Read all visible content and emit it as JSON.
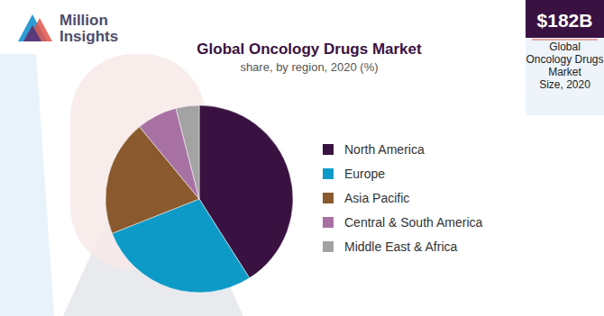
{
  "chart_data": {
    "type": "pie",
    "title": "Global Oncology Drugs Market",
    "subtitle": "share, by region, 2020 (%)",
    "categories": [
      "North America",
      "Europe",
      "Asia Pacific",
      "Central & South America",
      "Middle East & Africa"
    ],
    "values": [
      41,
      28,
      20,
      7,
      4
    ],
    "colors": [
      "#3a1241",
      "#0e9ac7",
      "#8a5a2e",
      "#a871a4",
      "#a3a3a3"
    ],
    "legend": "right",
    "annotations": [
      "$182B",
      "Global",
      "Oncology Drugs",
      "Market",
      "Size, 2020"
    ]
  },
  "logo": [
    "Million",
    "Insights"
  ]
}
